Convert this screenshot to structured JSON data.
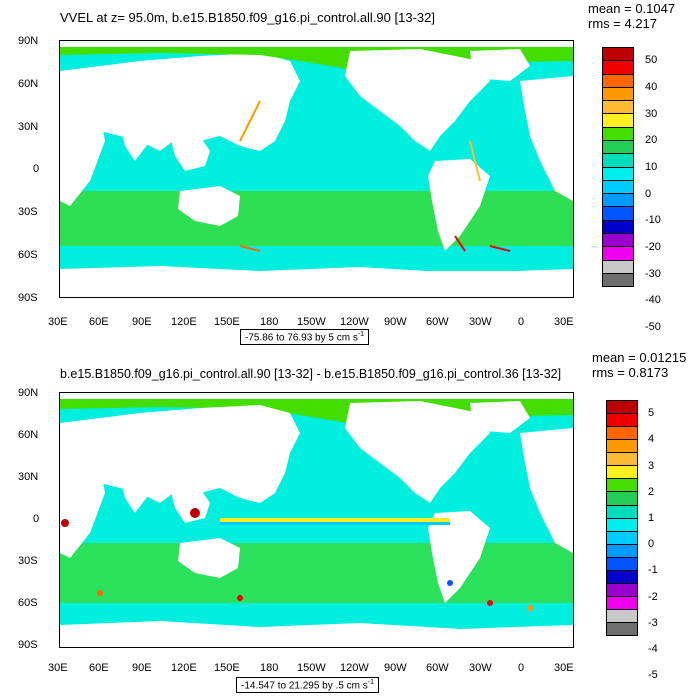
{
  "panel1": {
    "title": "VVEL at z=  95.0m, b.e15.B1850.f09_g16.pi_control.all.90 [13-32]",
    "mean": "mean = 0.1047",
    "rms": "rms = 4.217",
    "range": "-75.86 to 76.93 by 5 cm s",
    "range_exp": "-1",
    "colorbar_labels": [
      "50",
      "40",
      "30",
      "20",
      "10",
      "0",
      "-10",
      "-20",
      "-30",
      "-40",
      "-50"
    ]
  },
  "panel2": {
    "title": "b.e15.B1850.f09_g16.pi_control.all.90 [13-32] - b.e15.B1850.f09_g16.pi_control.36 [13-32]",
    "mean": "mean = 0.01215",
    "rms": "rms = 0.8173",
    "range": "-14.547 to 21.295 by .5 cm s",
    "range_exp": "-1",
    "colorbar_labels": [
      "5",
      "4",
      "3",
      "2",
      "1",
      "0",
      "-1",
      "-2",
      "-3",
      "-4",
      "-5"
    ]
  },
  "axes": {
    "lat_labels": [
      "90N",
      "60N",
      "30N",
      "0",
      "30S",
      "60S",
      "90S"
    ],
    "lon_labels": [
      "30E",
      "60E",
      "90E",
      "120E",
      "150E",
      "180",
      "150W",
      "120W",
      "90W",
      "60W",
      "30W",
      "0",
      "30E"
    ]
  },
  "colorbar_colors": [
    "#bb0000",
    "#ee0000",
    "#ff6600",
    "#ff9900",
    "#ffbb33",
    "#ffee22",
    "#44dd00",
    "#22cc55",
    "#00ddbb",
    "#00eeee",
    "#00ccff",
    "#0099ff",
    "#0055ff",
    "#0000cc",
    "#9900cc",
    "#ee00ee",
    "#c8c8c8",
    "#6e6e6e"
  ]
}
